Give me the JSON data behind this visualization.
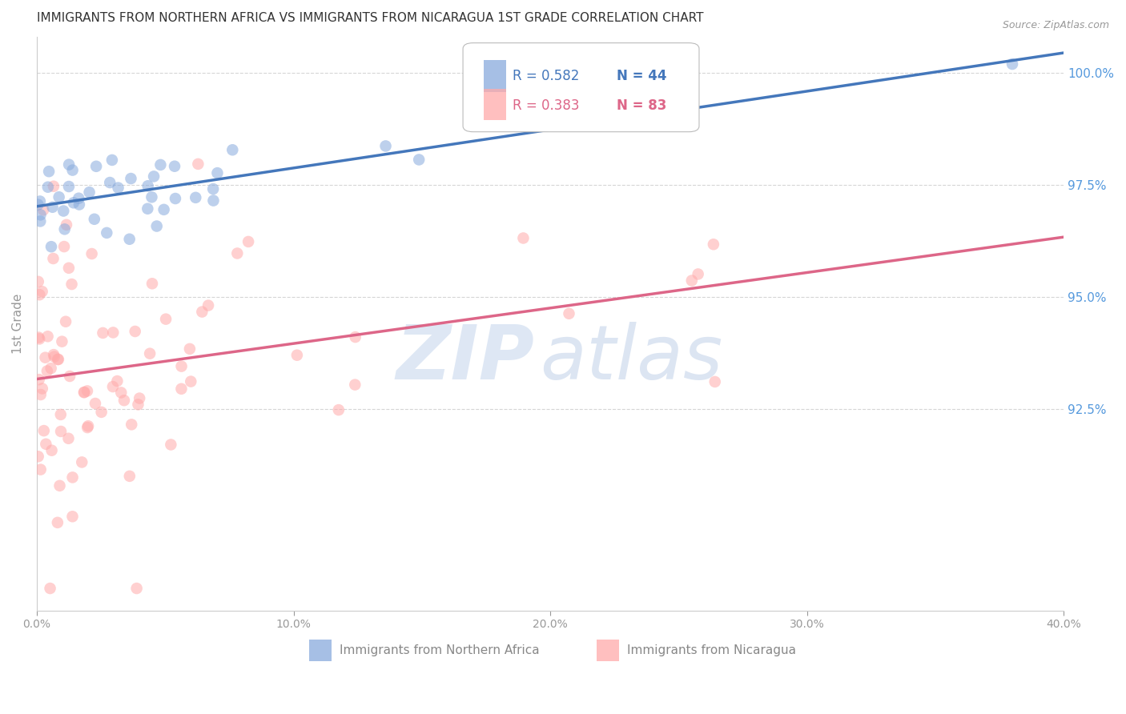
{
  "title": "IMMIGRANTS FROM NORTHERN AFRICA VS IMMIGRANTS FROM NICARAGUA 1ST GRADE CORRELATION CHART",
  "source": "Source: ZipAtlas.com",
  "ylabel": "1st Grade",
  "ylabel_right_labels": [
    "100.0%",
    "97.5%",
    "95.0%",
    "92.5%"
  ],
  "ylabel_right_values": [
    1.0,
    0.975,
    0.95,
    0.925
  ],
  "xlim": [
    0.0,
    0.4
  ],
  "ylim": [
    0.88,
    1.008
  ],
  "legend_r1": "R = 0.582",
  "legend_n1": "N = 44",
  "legend_r2": "R = 0.383",
  "legend_n2": "N = 83",
  "color_blue": "#88AADD",
  "color_pink": "#FFAAAA",
  "color_line_blue": "#4477BB",
  "color_line_pink": "#DD6688",
  "color_axis_right": "#5599DD",
  "scatter_alpha": 0.55,
  "scatter_size": 110,
  "watermark_zip_color": "#C8D8EE",
  "watermark_atlas_color": "#C0D0E8"
}
